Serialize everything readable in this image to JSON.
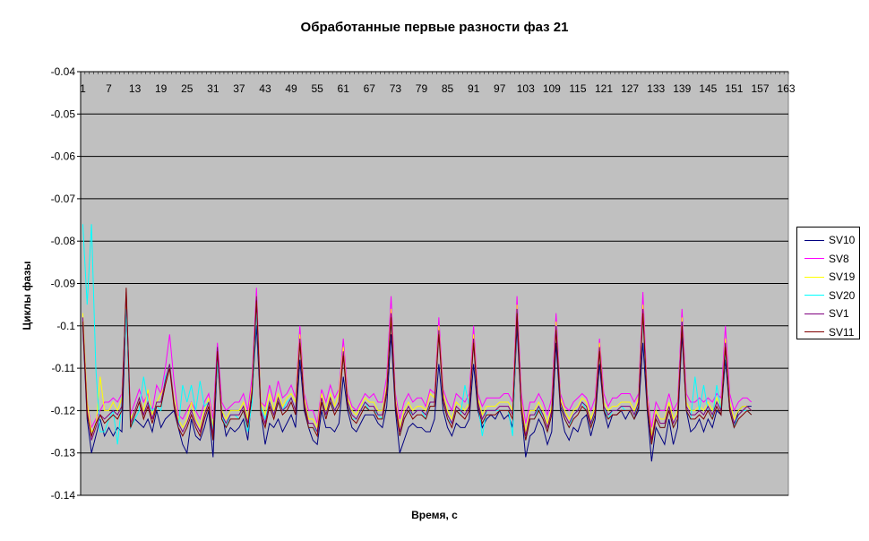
{
  "chart_data": {
    "type": "line",
    "title": "Обработанные первые разности фаз 21",
    "xlabel": "Время, с",
    "ylabel": "Циклы фазы",
    "ylim": [
      -0.14,
      -0.04
    ],
    "yticks": [
      "-0.04",
      "-0.05",
      "-0.06",
      "-0.07",
      "-0.08",
      "-0.09",
      "-0.1",
      "-0.11",
      "-0.12",
      "-0.13",
      "-0.14"
    ],
    "x_categories": 163,
    "xticks": [
      "1",
      "7",
      "13",
      "19",
      "25",
      "31",
      "37",
      "43",
      "49",
      "55",
      "61",
      "67",
      "73",
      "79",
      "85",
      "91",
      "97",
      "103",
      "109",
      "115",
      "121",
      "127",
      "133",
      "139",
      "145",
      "151",
      "157",
      "163"
    ],
    "grid": true,
    "legend_position": "right",
    "plot_background": "#C0C0C0",
    "series": [
      {
        "name": "SV10",
        "color": "#000080",
        "values": [
          -0.1,
          -0.122,
          -0.13,
          -0.126,
          -0.122,
          -0.126,
          -0.124,
          -0.126,
          -0.124,
          -0.125,
          -0.095,
          -0.124,
          -0.122,
          -0.123,
          -0.124,
          -0.122,
          -0.125,
          -0.12,
          -0.124,
          -0.122,
          -0.121,
          -0.12,
          -0.124,
          -0.128,
          -0.13,
          -0.122,
          -0.126,
          -0.127,
          -0.124,
          -0.12,
          -0.131,
          -0.108,
          -0.12,
          -0.126,
          -0.124,
          -0.125,
          -0.124,
          -0.122,
          -0.127,
          -0.116,
          -0.1,
          -0.12,
          -0.128,
          -0.123,
          -0.124,
          -0.122,
          -0.125,
          -0.123,
          -0.121,
          -0.124,
          -0.108,
          -0.12,
          -0.124,
          -0.127,
          -0.128,
          -0.12,
          -0.124,
          -0.124,
          -0.125,
          -0.123,
          -0.112,
          -0.12,
          -0.124,
          -0.125,
          -0.123,
          -0.121,
          -0.121,
          -0.121,
          -0.123,
          -0.124,
          -0.119,
          -0.102,
          -0.12,
          -0.13,
          -0.127,
          -0.124,
          -0.123,
          -0.124,
          -0.124,
          -0.125,
          -0.125,
          -0.122,
          -0.109,
          -0.12,
          -0.124,
          -0.126,
          -0.123,
          -0.124,
          -0.124,
          -0.122,
          -0.109,
          -0.12,
          -0.124,
          -0.122,
          -0.121,
          -0.122,
          -0.12,
          -0.122,
          -0.121,
          -0.124,
          -0.1,
          -0.12,
          -0.131,
          -0.126,
          -0.125,
          -0.122,
          -0.124,
          -0.128,
          -0.125,
          -0.104,
          -0.12,
          -0.125,
          -0.127,
          -0.124,
          -0.125,
          -0.122,
          -0.121,
          -0.126,
          -0.122,
          -0.109,
          -0.12,
          -0.124,
          -0.121,
          -0.121,
          -0.12,
          -0.122,
          -0.12,
          -0.122,
          -0.12,
          -0.104,
          -0.12,
          -0.132,
          -0.124,
          -0.126,
          -0.128,
          -0.122,
          -0.128,
          -0.124,
          -0.102,
          -0.12,
          -0.125,
          -0.124,
          -0.122,
          -0.125,
          -0.122,
          -0.124,
          -0.12,
          -0.121,
          -0.108,
          -0.12,
          -0.124,
          -0.12,
          -0.119,
          -0.119,
          -0.119
        ]
      },
      {
        "name": "SV8",
        "color": "#FF00FF",
        "values": [
          -0.098,
          -0.118,
          -0.124,
          -0.122,
          -0.12,
          -0.118,
          -0.118,
          -0.117,
          -0.118,
          -0.116,
          -0.093,
          -0.121,
          -0.118,
          -0.115,
          -0.118,
          -0.116,
          -0.12,
          -0.114,
          -0.116,
          -0.11,
          -0.102,
          -0.113,
          -0.121,
          -0.122,
          -0.12,
          -0.118,
          -0.12,
          -0.122,
          -0.118,
          -0.116,
          -0.122,
          -0.104,
          -0.118,
          -0.12,
          -0.119,
          -0.118,
          -0.118,
          -0.116,
          -0.12,
          -0.112,
          -0.091,
          -0.118,
          -0.119,
          -0.114,
          -0.118,
          -0.113,
          -0.117,
          -0.116,
          -0.114,
          -0.117,
          -0.1,
          -0.116,
          -0.12,
          -0.12,
          -0.123,
          -0.115,
          -0.118,
          -0.114,
          -0.117,
          -0.115,
          -0.103,
          -0.116,
          -0.119,
          -0.12,
          -0.118,
          -0.116,
          -0.117,
          -0.116,
          -0.118,
          -0.118,
          -0.112,
          -0.093,
          -0.116,
          -0.122,
          -0.118,
          -0.116,
          -0.118,
          -0.117,
          -0.117,
          -0.119,
          -0.115,
          -0.116,
          -0.098,
          -0.115,
          -0.118,
          -0.12,
          -0.116,
          -0.117,
          -0.118,
          -0.116,
          -0.1,
          -0.116,
          -0.119,
          -0.117,
          -0.117,
          -0.117,
          -0.117,
          -0.116,
          -0.116,
          -0.118,
          -0.093,
          -0.116,
          -0.123,
          -0.118,
          -0.118,
          -0.116,
          -0.118,
          -0.121,
          -0.117,
          -0.097,
          -0.116,
          -0.119,
          -0.12,
          -0.118,
          -0.117,
          -0.116,
          -0.117,
          -0.12,
          -0.117,
          -0.103,
          -0.116,
          -0.119,
          -0.117,
          -0.117,
          -0.116,
          -0.116,
          -0.116,
          -0.118,
          -0.116,
          -0.092,
          -0.116,
          -0.124,
          -0.118,
          -0.12,
          -0.12,
          -0.116,
          -0.12,
          -0.118,
          -0.096,
          -0.116,
          -0.118,
          -0.118,
          -0.117,
          -0.118,
          -0.117,
          -0.118,
          -0.116,
          -0.117,
          -0.1,
          -0.116,
          -0.12,
          -0.118,
          -0.117,
          -0.117,
          -0.118
        ]
      },
      {
        "name": "SV19",
        "color": "#FFFF00",
        "values": [
          -0.097,
          -0.118,
          -0.125,
          -0.124,
          -0.112,
          -0.12,
          -0.12,
          -0.118,
          -0.12,
          -0.117,
          -0.094,
          -0.122,
          -0.12,
          -0.117,
          -0.12,
          -0.115,
          -0.121,
          -0.118,
          -0.116,
          -0.114,
          -0.11,
          -0.117,
          -0.122,
          -0.124,
          -0.122,
          -0.118,
          -0.122,
          -0.124,
          -0.12,
          -0.117,
          -0.124,
          -0.106,
          -0.12,
          -0.122,
          -0.12,
          -0.12,
          -0.12,
          -0.118,
          -0.122,
          -0.114,
          -0.093,
          -0.118,
          -0.121,
          -0.116,
          -0.12,
          -0.116,
          -0.119,
          -0.117,
          -0.116,
          -0.118,
          -0.102,
          -0.117,
          -0.122,
          -0.122,
          -0.124,
          -0.116,
          -0.12,
          -0.116,
          -0.119,
          -0.116,
          -0.105,
          -0.117,
          -0.12,
          -0.121,
          -0.119,
          -0.117,
          -0.118,
          -0.118,
          -0.12,
          -0.12,
          -0.114,
          -0.096,
          -0.117,
          -0.124,
          -0.12,
          -0.118,
          -0.12,
          -0.119,
          -0.119,
          -0.12,
          -0.116,
          -0.117,
          -0.1,
          -0.116,
          -0.12,
          -0.122,
          -0.118,
          -0.119,
          -0.12,
          -0.118,
          -0.102,
          -0.117,
          -0.121,
          -0.119,
          -0.119,
          -0.119,
          -0.118,
          -0.118,
          -0.118,
          -0.12,
          -0.095,
          -0.118,
          -0.125,
          -0.12,
          -0.12,
          -0.118,
          -0.12,
          -0.123,
          -0.119,
          -0.099,
          -0.117,
          -0.12,
          -0.122,
          -0.12,
          -0.119,
          -0.117,
          -0.118,
          -0.122,
          -0.119,
          -0.104,
          -0.118,
          -0.12,
          -0.119,
          -0.119,
          -0.118,
          -0.118,
          -0.118,
          -0.12,
          -0.117,
          -0.095,
          -0.117,
          -0.126,
          -0.12,
          -0.122,
          -0.122,
          -0.118,
          -0.122,
          -0.12,
          -0.098,
          -0.118,
          -0.12,
          -0.12,
          -0.119,
          -0.12,
          -0.118,
          -0.12,
          -0.117,
          -0.119,
          -0.103,
          -0.118,
          -0.122,
          -0.12,
          -0.119,
          -0.119,
          -0.12
        ]
      },
      {
        "name": "SV20",
        "color": "#00FFFF",
        "values": [
          -0.076,
          -0.095,
          -0.076,
          -0.11,
          -0.125,
          -0.125,
          -0.122,
          -0.12,
          -0.128,
          -0.118,
          -0.096,
          -0.124,
          -0.122,
          -0.12,
          -0.112,
          -0.118,
          -0.12,
          -0.119,
          -0.12,
          -0.112,
          -0.11,
          -0.118,
          -0.124,
          -0.114,
          -0.118,
          -0.114,
          -0.12,
          -0.113,
          -0.119,
          -0.118,
          -0.125,
          -0.108,
          -0.121,
          -0.124,
          -0.121,
          -0.121,
          -0.122,
          -0.12,
          -0.125,
          -0.118,
          -0.096,
          -0.119,
          -0.122,
          -0.118,
          -0.121,
          -0.118,
          -0.12,
          -0.118,
          -0.117,
          -0.12,
          -0.104,
          -0.118,
          -0.124,
          -0.124,
          -0.125,
          -0.118,
          -0.121,
          -0.118,
          -0.12,
          -0.118,
          -0.107,
          -0.118,
          -0.122,
          -0.122,
          -0.12,
          -0.118,
          -0.12,
          -0.12,
          -0.121,
          -0.122,
          -0.116,
          -0.098,
          -0.118,
          -0.126,
          -0.122,
          -0.12,
          -0.121,
          -0.12,
          -0.12,
          -0.122,
          -0.118,
          -0.118,
          -0.102,
          -0.118,
          -0.122,
          -0.123,
          -0.12,
          -0.121,
          -0.114,
          -0.119,
          -0.104,
          -0.118,
          -0.126,
          -0.12,
          -0.12,
          -0.12,
          -0.12,
          -0.12,
          -0.12,
          -0.126,
          -0.096,
          -0.12,
          -0.127,
          -0.122,
          -0.122,
          -0.119,
          -0.122,
          -0.125,
          -0.121,
          -0.1,
          -0.118,
          -0.122,
          -0.124,
          -0.121,
          -0.12,
          -0.118,
          -0.12,
          -0.124,
          -0.12,
          -0.106,
          -0.119,
          -0.122,
          -0.12,
          -0.12,
          -0.119,
          -0.12,
          -0.12,
          -0.122,
          -0.118,
          -0.098,
          -0.118,
          -0.128,
          -0.122,
          -0.124,
          -0.124,
          -0.12,
          -0.124,
          -0.122,
          -0.099,
          -0.12,
          -0.122,
          -0.112,
          -0.12,
          -0.114,
          -0.12,
          -0.122,
          -0.114,
          -0.12,
          -0.106,
          -0.119,
          -0.124,
          -0.121,
          -0.12,
          -0.12,
          -0.121
        ]
      },
      {
        "name": "SV1",
        "color": "#800080",
        "values": [
          -0.098,
          -0.12,
          -0.127,
          -0.124,
          -0.121,
          -0.122,
          -0.121,
          -0.12,
          -0.121,
          -0.119,
          -0.092,
          -0.123,
          -0.12,
          -0.117,
          -0.121,
          -0.118,
          -0.122,
          -0.118,
          -0.118,
          -0.113,
          -0.109,
          -0.118,
          -0.123,
          -0.125,
          -0.123,
          -0.12,
          -0.123,
          -0.125,
          -0.121,
          -0.118,
          -0.126,
          -0.105,
          -0.121,
          -0.123,
          -0.121,
          -0.121,
          -0.121,
          -0.119,
          -0.123,
          -0.115,
          -0.093,
          -0.12,
          -0.123,
          -0.118,
          -0.121,
          -0.117,
          -0.12,
          -0.119,
          -0.117,
          -0.12,
          -0.103,
          -0.118,
          -0.123,
          -0.123,
          -0.125,
          -0.117,
          -0.121,
          -0.117,
          -0.12,
          -0.118,
          -0.106,
          -0.118,
          -0.121,
          -0.122,
          -0.12,
          -0.118,
          -0.119,
          -0.119,
          -0.121,
          -0.121,
          -0.115,
          -0.097,
          -0.118,
          -0.125,
          -0.121,
          -0.119,
          -0.121,
          -0.12,
          -0.12,
          -0.121,
          -0.118,
          -0.118,
          -0.101,
          -0.117,
          -0.121,
          -0.123,
          -0.119,
          -0.12,
          -0.121,
          -0.119,
          -0.103,
          -0.118,
          -0.122,
          -0.12,
          -0.12,
          -0.12,
          -0.119,
          -0.119,
          -0.119,
          -0.121,
          -0.096,
          -0.119,
          -0.126,
          -0.121,
          -0.121,
          -0.119,
          -0.121,
          -0.124,
          -0.12,
          -0.1,
          -0.118,
          -0.121,
          -0.123,
          -0.121,
          -0.12,
          -0.118,
          -0.119,
          -0.123,
          -0.12,
          -0.105,
          -0.119,
          -0.121,
          -0.12,
          -0.12,
          -0.119,
          -0.119,
          -0.119,
          -0.121,
          -0.118,
          -0.096,
          -0.118,
          -0.127,
          -0.121,
          -0.123,
          -0.123,
          -0.119,
          -0.123,
          -0.121,
          -0.099,
          -0.119,
          -0.121,
          -0.121,
          -0.12,
          -0.121,
          -0.119,
          -0.121,
          -0.118,
          -0.12,
          -0.104,
          -0.119,
          -0.123,
          -0.121,
          -0.12,
          -0.119,
          -0.12
        ]
      },
      {
        "name": "SV11",
        "color": "#800000",
        "values": [
          -0.099,
          -0.121,
          -0.126,
          -0.123,
          -0.121,
          -0.123,
          -0.122,
          -0.121,
          -0.122,
          -0.12,
          -0.091,
          -0.124,
          -0.121,
          -0.118,
          -0.122,
          -0.119,
          -0.123,
          -0.119,
          -0.119,
          -0.114,
          -0.11,
          -0.119,
          -0.124,
          -0.126,
          -0.124,
          -0.121,
          -0.124,
          -0.126,
          -0.122,
          -0.119,
          -0.127,
          -0.106,
          -0.122,
          -0.124,
          -0.122,
          -0.122,
          -0.122,
          -0.12,
          -0.124,
          -0.116,
          -0.094,
          -0.121,
          -0.124,
          -0.119,
          -0.122,
          -0.118,
          -0.121,
          -0.12,
          -0.118,
          -0.121,
          -0.104,
          -0.119,
          -0.124,
          -0.124,
          -0.126,
          -0.118,
          -0.122,
          -0.118,
          -0.121,
          -0.119,
          -0.107,
          -0.119,
          -0.122,
          -0.123,
          -0.121,
          -0.119,
          -0.12,
          -0.12,
          -0.122,
          -0.122,
          -0.116,
          -0.098,
          -0.119,
          -0.126,
          -0.122,
          -0.12,
          -0.122,
          -0.121,
          -0.121,
          -0.122,
          -0.119,
          -0.119,
          -0.102,
          -0.118,
          -0.122,
          -0.124,
          -0.12,
          -0.121,
          -0.122,
          -0.12,
          -0.104,
          -0.119,
          -0.123,
          -0.121,
          -0.121,
          -0.121,
          -0.12,
          -0.12,
          -0.12,
          -0.122,
          -0.097,
          -0.12,
          -0.127,
          -0.122,
          -0.122,
          -0.12,
          -0.122,
          -0.125,
          -0.121,
          -0.101,
          -0.119,
          -0.122,
          -0.124,
          -0.122,
          -0.121,
          -0.119,
          -0.12,
          -0.124,
          -0.121,
          -0.106,
          -0.12,
          -0.122,
          -0.121,
          -0.121,
          -0.12,
          -0.12,
          -0.12,
          -0.122,
          -0.119,
          -0.097,
          -0.119,
          -0.128,
          -0.122,
          -0.124,
          -0.124,
          -0.12,
          -0.124,
          -0.122,
          -0.1,
          -0.12,
          -0.122,
          -0.122,
          -0.121,
          -0.122,
          -0.12,
          -0.122,
          -0.119,
          -0.121,
          -0.105,
          -0.12,
          -0.124,
          -0.122,
          -0.121,
          -0.12,
          -0.121
        ]
      }
    ]
  }
}
